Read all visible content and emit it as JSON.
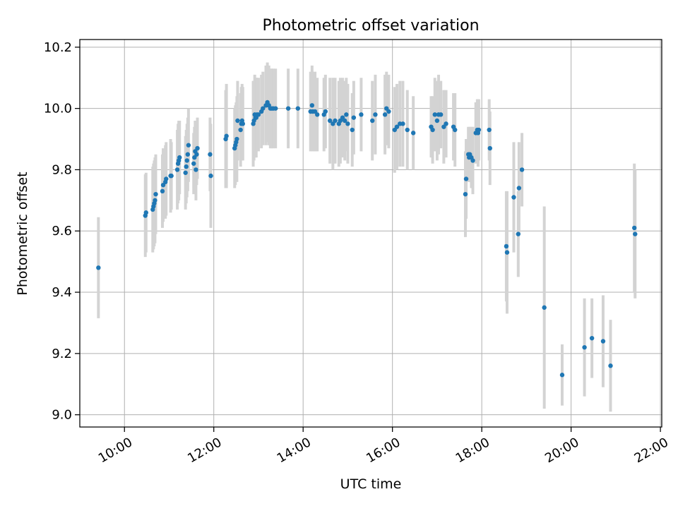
{
  "chart_data": {
    "type": "scatter",
    "title": "Photometric offset variation",
    "xlabel": "UTC time",
    "ylabel": "Photometric offset",
    "x_tick_labels": [
      "10:00",
      "12:00",
      "14:00",
      "16:00",
      "18:00",
      "20:00",
      "22:00"
    ],
    "x_ticks_hours": [
      10,
      12,
      14,
      16,
      18,
      20,
      22
    ],
    "xlim_hours": [
      9.0,
      22.03
    ],
    "y_tick_labels": [
      "9.0",
      "9.2",
      "9.4",
      "9.6",
      "9.8",
      "10.0",
      "10.2"
    ],
    "y_ticks": [
      9.0,
      9.2,
      9.4,
      9.6,
      9.8,
      10.0,
      10.2
    ],
    "ylim": [
      8.96,
      10.225
    ],
    "grid": true,
    "marker_color": "#1f77b4",
    "errorbar_color": "#d3d3d3",
    "series": [
      {
        "x_time": [
          "09:25",
          "10:28",
          "10:29",
          "10:38",
          "10:39",
          "10:40",
          "10:41",
          "10:42",
          "10:51",
          "10:52",
          "10:55",
          "10:56",
          "11:02",
          "11:03",
          "11:11",
          "11:12",
          "11:13",
          "11:14",
          "11:22",
          "11:23",
          "11:24",
          "11:25",
          "11:26",
          "11:33",
          "11:34",
          "11:35",
          "11:36",
          "11:37",
          "11:38",
          "11:55",
          "11:56",
          "12:16",
          "12:17",
          "12:28",
          "12:29",
          "12:30",
          "12:31",
          "12:32",
          "12:36",
          "12:37",
          "12:38",
          "12:39",
          "12:53",
          "12:54",
          "12:55",
          "12:56",
          "12:57",
          "12:58",
          "13:00",
          "13:04",
          "13:06",
          "13:10",
          "13:12",
          "13:14",
          "13:16",
          "13:18",
          "13:20",
          "13:23",
          "13:40",
          "13:53",
          "14:10",
          "14:12",
          "14:13",
          "14:16",
          "14:19",
          "14:28",
          "14:30",
          "14:36",
          "14:40",
          "14:43",
          "14:48",
          "14:50",
          "14:53",
          "14:56",
          "14:58",
          "15:00",
          "15:06",
          "15:08",
          "15:18",
          "15:33",
          "15:37",
          "15:50",
          "15:52",
          "15:55",
          "16:03",
          "16:06",
          "16:10",
          "16:14",
          "16:20",
          "16:28",
          "16:52",
          "16:54",
          "16:57",
          "17:00",
          "17:02",
          "17:05",
          "17:09",
          "17:12",
          "17:22",
          "17:24",
          "17:38",
          "17:39",
          "17:42",
          "17:43",
          "17:44",
          "17:46",
          "17:48",
          "17:52",
          "17:54",
          "17:55",
          "17:56",
          "18:10",
          "18:11",
          "18:33",
          "18:34",
          "18:43",
          "18:49",
          "18:50",
          "18:54",
          "19:24",
          "19:48",
          "20:18",
          "20:28",
          "20:43",
          "20:53",
          "21:25",
          "21:26"
        ],
        "y": [
          9.48,
          9.65,
          9.66,
          9.67,
          9.68,
          9.69,
          9.7,
          9.72,
          9.73,
          9.75,
          9.76,
          9.77,
          9.78,
          9.78,
          9.8,
          9.82,
          9.83,
          9.84,
          9.79,
          9.81,
          9.83,
          9.85,
          9.88,
          9.82,
          9.84,
          9.86,
          9.8,
          9.85,
          9.87,
          9.85,
          9.78,
          9.9,
          9.91,
          9.87,
          9.88,
          9.89,
          9.9,
          9.96,
          9.93,
          9.95,
          9.96,
          9.95,
          9.95,
          9.96,
          9.98,
          9.97,
          9.97,
          9.98,
          9.98,
          9.99,
          10.0,
          10.01,
          10.02,
          10.01,
          10.0,
          10.0,
          10.0,
          10.0,
          10.0,
          10.0,
          9.99,
          10.01,
          9.99,
          9.99,
          9.98,
          9.98,
          9.99,
          9.96,
          9.95,
          9.96,
          9.95,
          9.96,
          9.97,
          9.96,
          9.98,
          9.95,
          9.93,
          9.97,
          9.98,
          9.96,
          9.98,
          9.98,
          10.0,
          9.99,
          9.93,
          9.94,
          9.95,
          9.95,
          9.93,
          9.92,
          9.94,
          9.93,
          9.98,
          9.96,
          9.98,
          9.98,
          9.94,
          9.95,
          9.94,
          9.93,
          9.72,
          9.77,
          9.85,
          9.84,
          9.85,
          9.84,
          9.83,
          9.92,
          9.93,
          9.92,
          9.93,
          9.93,
          9.87,
          9.55,
          9.53,
          9.71,
          9.59,
          9.74,
          9.8,
          9.35,
          9.13,
          9.22,
          9.25,
          9.24,
          9.16,
          9.61,
          9.59
        ],
        "err": [
          0.165,
          0.135,
          0.13,
          0.14,
          0.14,
          0.14,
          0.14,
          0.13,
          0.12,
          0.12,
          0.12,
          0.12,
          0.12,
          0.11,
          0.13,
          0.13,
          0.13,
          0.12,
          0.12,
          0.12,
          0.12,
          0.12,
          0.12,
          0.1,
          0.1,
          0.1,
          0.1,
          0.1,
          0.1,
          0.12,
          0.17,
          0.16,
          0.17,
          0.13,
          0.13,
          0.13,
          0.14,
          0.13,
          0.12,
          0.12,
          0.12,
          0.12,
          0.14,
          0.13,
          0.13,
          0.13,
          0.13,
          0.12,
          0.12,
          0.12,
          0.12,
          0.13,
          0.13,
          0.13,
          0.13,
          0.13,
          0.13,
          0.13,
          0.13,
          0.13,
          0.13,
          0.13,
          0.13,
          0.13,
          0.12,
          0.12,
          0.12,
          0.14,
          0.15,
          0.14,
          0.14,
          0.14,
          0.13,
          0.13,
          0.12,
          0.13,
          0.12,
          0.12,
          0.12,
          0.13,
          0.13,
          0.13,
          0.12,
          0.12,
          0.14,
          0.14,
          0.14,
          0.14,
          0.13,
          0.12,
          0.1,
          0.11,
          0.12,
          0.13,
          0.13,
          0.11,
          0.12,
          0.11,
          0.11,
          0.12,
          0.14,
          0.13,
          0.09,
          0.08,
          0.09,
          0.1,
          0.11,
          0.1,
          0.1,
          0.11,
          0.1,
          0.1,
          0.12,
          0.18,
          0.2,
          0.18,
          0.14,
          0.15,
          0.12,
          0.33,
          0.1,
          0.16,
          0.13,
          0.15,
          0.15,
          0.21,
          0.21
        ]
      }
    ]
  }
}
